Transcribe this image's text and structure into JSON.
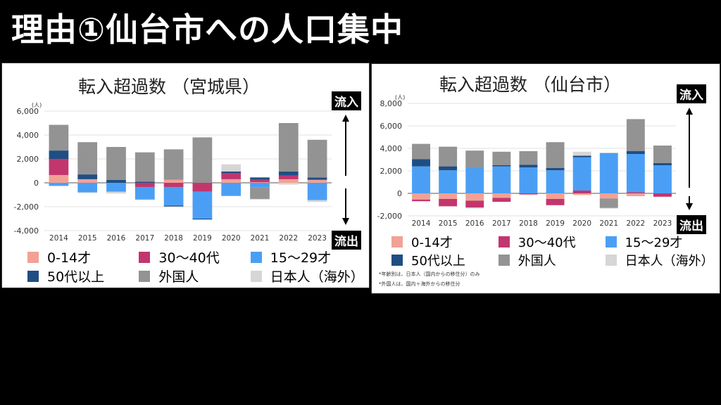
{
  "title": "理由①仙台市への人口集中",
  "tags": {
    "in": "流入",
    "out": "流出"
  },
  "legend": [
    {
      "key": "c0_14",
      "label": "0-14才",
      "color": "#f2a195"
    },
    {
      "key": "c30_40",
      "label": "30〜40代",
      "color": "#c2366e"
    },
    {
      "key": "c15_29",
      "label": "15〜29才",
      "color": "#4a9ff5"
    },
    {
      "key": "c50",
      "label": "50代以上",
      "color": "#1f4e83"
    },
    {
      "key": "foreign",
      "label": "外国人",
      "color": "#939393"
    },
    {
      "key": "overseas",
      "label": "日本人（海外）",
      "color": "#d6d6d6"
    }
  ],
  "notes": [
    "*年齢別は、日本人（国内からの移住分）のみ",
    "*外国人は、国内＋海外からの移住分"
  ],
  "chart_data": [
    {
      "type": "bar",
      "stacked": true,
      "title": "転入超過数 （宮城県）",
      "ylabel": "(人)",
      "ylim": [
        -4000,
        6000
      ],
      "yticks": [
        "6,000",
        "4,000",
        "2,000",
        "0",
        "-2,000",
        "-4,000"
      ],
      "ytick_values": [
        6000,
        4000,
        2000,
        0,
        -2000,
        -4000
      ],
      "categories": [
        "2014",
        "2015",
        "2016",
        "2017",
        "2018",
        "2019",
        "2020",
        "2021",
        "2022",
        "2023"
      ],
      "series": [
        {
          "name": "0-14才",
          "key": "c0_14",
          "values": [
            650,
            300,
            0,
            0,
            250,
            0,
            300,
            50,
            300,
            250
          ]
        },
        {
          "name": "30〜40代",
          "key": "c30_40",
          "values": [
            1350,
            0,
            0,
            -350,
            -350,
            -750,
            500,
            200,
            300,
            0
          ]
        },
        {
          "name": "15〜29才",
          "key": "c15_29",
          "values": [
            -250,
            -800,
            -750,
            -1050,
            -1550,
            -2250,
            -1100,
            -400,
            0,
            -1450
          ]
        },
        {
          "name": "50代以上",
          "key": "c50",
          "values": [
            700,
            400,
            250,
            100,
            -80,
            -70,
            150,
            200,
            350,
            200
          ]
        },
        {
          "name": "外国人",
          "key": "foreign",
          "values": [
            2150,
            2700,
            2750,
            2450,
            2550,
            3800,
            0,
            -950,
            4050,
            3150
          ]
        },
        {
          "name": "日本人（海外）",
          "key": "overseas",
          "values": [
            -50,
            -50,
            -150,
            -50,
            0,
            0,
            600,
            -50,
            -150,
            -150
          ]
        }
      ]
    },
    {
      "type": "bar",
      "stacked": true,
      "title": "転入超過数 （仙台市）",
      "ylabel": "(人)",
      "ylim": [
        -2000,
        8000
      ],
      "yticks": [
        "8,000",
        "6,000",
        "4,000",
        "2,000",
        "0",
        "-2,000"
      ],
      "ytick_values": [
        8000,
        6000,
        4000,
        2000,
        0,
        -2000
      ],
      "categories": [
        "2014",
        "2015",
        "2016",
        "2017",
        "2018",
        "2019",
        "2020",
        "2021",
        "2022",
        "2023"
      ],
      "series": [
        {
          "name": "0-14才",
          "key": "c0_14",
          "values": [
            -550,
            -500,
            -650,
            -400,
            0,
            -500,
            -150,
            -450,
            -250,
            0
          ]
        },
        {
          "name": "30〜40代",
          "key": "c30_40",
          "values": [
            -150,
            -650,
            -600,
            -350,
            -100,
            -550,
            250,
            0,
            100,
            -300
          ]
        },
        {
          "name": "15〜29才",
          "key": "c15_29",
          "values": [
            2400,
            2050,
            2250,
            2400,
            2300,
            2050,
            2950,
            3550,
            3400,
            2500
          ]
        },
        {
          "name": "50代以上",
          "key": "c50",
          "values": [
            650,
            350,
            0,
            100,
            250,
            200,
            150,
            30,
            250,
            200
          ]
        },
        {
          "name": "外国人",
          "key": "foreign",
          "values": [
            1350,
            1750,
            1550,
            1200,
            1200,
            2300,
            0,
            -850,
            2850,
            1550
          ]
        },
        {
          "name": "日本人（海外）",
          "key": "overseas",
          "values": [
            0,
            0,
            -100,
            0,
            0,
            0,
            350,
            -50,
            0,
            0
          ]
        }
      ]
    }
  ]
}
